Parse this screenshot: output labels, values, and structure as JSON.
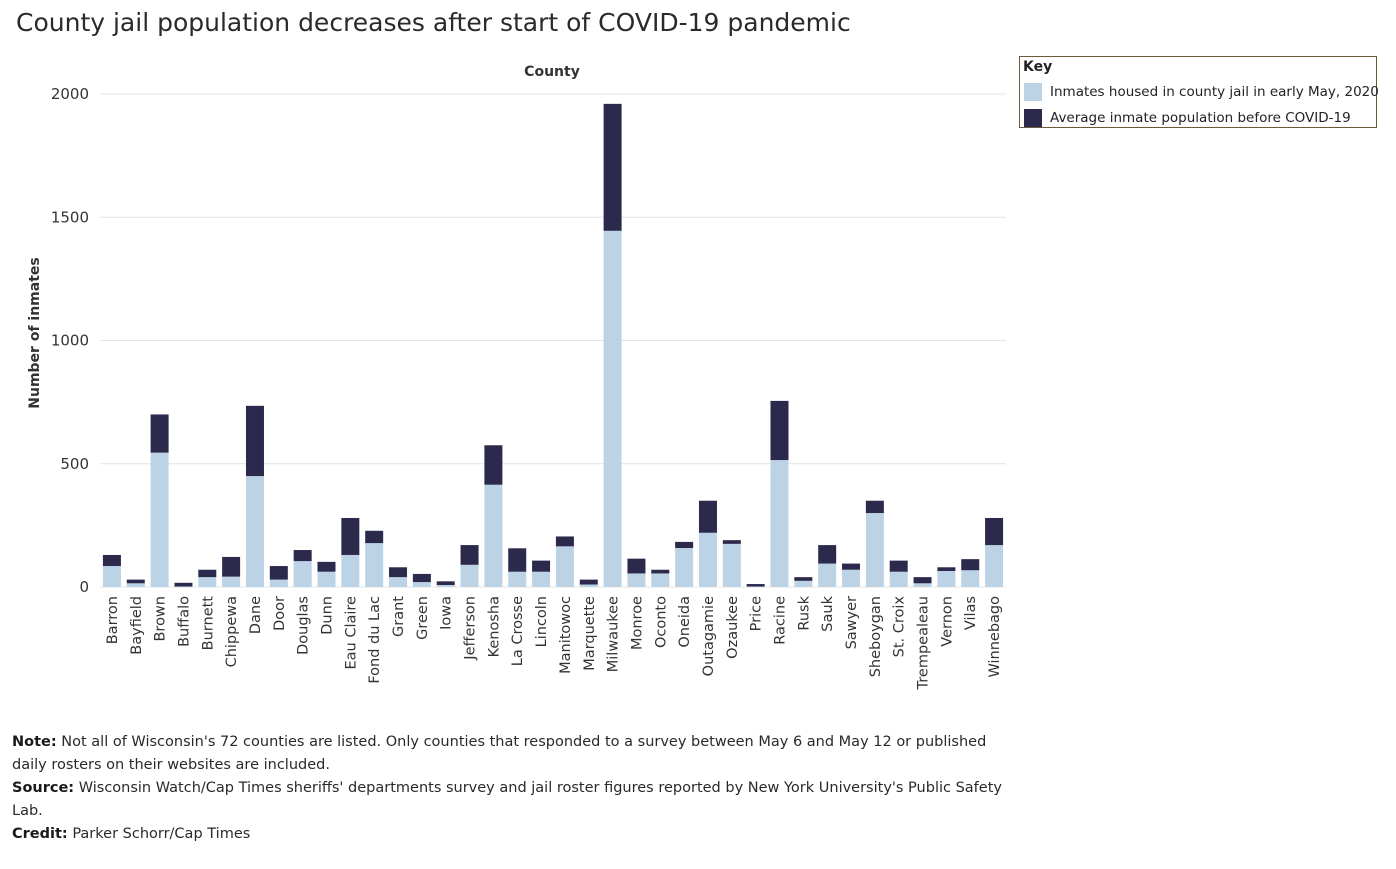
{
  "title": "County jail population decreases after start of COVID-19 pandemic",
  "legend": {
    "title": "Key",
    "items": [
      {
        "label": "Inmates housed in county jail in early May, 2020",
        "color": "#bcd3e6"
      },
      {
        "label": "Average inmate population before COVID-19",
        "color": "#2b2a4c"
      }
    ]
  },
  "notes": {
    "note_label": "Note:",
    "note_text": "Not all of Wisconsin's 72 counties are listed. Only counties that responded to a survey between May 6 and May 12 or published daily rosters on their websites are included.",
    "source_label": "Source:",
    "source_text": "Wisconsin Watch/Cap Times sheriffs' departments survey and jail roster figures reported by New York University's Public Safety Lab.",
    "credit_label": "Credit:",
    "credit_text": "Parker Schorr/Cap Times"
  },
  "chart_data": {
    "type": "bar",
    "stacked": true,
    "title": "County",
    "xlabel": "County",
    "ylabel": "Number of inmates",
    "ylim": [
      -40,
      2040
    ],
    "yticks": [
      0,
      500,
      1000,
      1500,
      2000
    ],
    "grid": true,
    "categories": [
      "Barron",
      "Bayfield",
      "Brown",
      "Buffalo",
      "Burnett",
      "Chippewa",
      "Dane",
      "Door",
      "Douglas",
      "Dunn",
      "Eau Claire",
      "Fond du Lac",
      "Grant",
      "Green",
      "Iowa",
      "Jefferson",
      "Kenosha",
      "La Crosse",
      "Lincoln",
      "Manitowoc",
      "Marquette",
      "Milwaukee",
      "Monroe",
      "Oconto",
      "Oneida",
      "Outagamie",
      "Ozaukee",
      "Price",
      "Racine",
      "Rusk",
      "Sauk",
      "Sawyer",
      "Sheboygan",
      "St. Croix",
      "Trempealeau",
      "Vernon",
      "Vilas",
      "Winnebago"
    ],
    "series": [
      {
        "name": "Inmates housed in county jail in early May, 2020",
        "color": "#bcd3e6",
        "values": [
          85,
          15,
          545,
          2,
          40,
          42,
          450,
          30,
          105,
          62,
          130,
          178,
          40,
          20,
          8,
          90,
          415,
          62,
          62,
          165,
          10,
          1445,
          55,
          55,
          158,
          220,
          175,
          2,
          515,
          25,
          95,
          70,
          300,
          62,
          15,
          65,
          68,
          170
        ]
      },
      {
        "name": "Average inmate population before COVID-19",
        "color": "#2b2a4c",
        "values": [
          45,
          15,
          155,
          15,
          30,
          80,
          285,
          55,
          45,
          40,
          150,
          50,
          40,
          33,
          15,
          80,
          160,
          95,
          45,
          40,
          20,
          515,
          60,
          15,
          25,
          130,
          15,
          10,
          240,
          15,
          75,
          25,
          50,
          45,
          25,
          15,
          45,
          110
        ]
      }
    ]
  }
}
